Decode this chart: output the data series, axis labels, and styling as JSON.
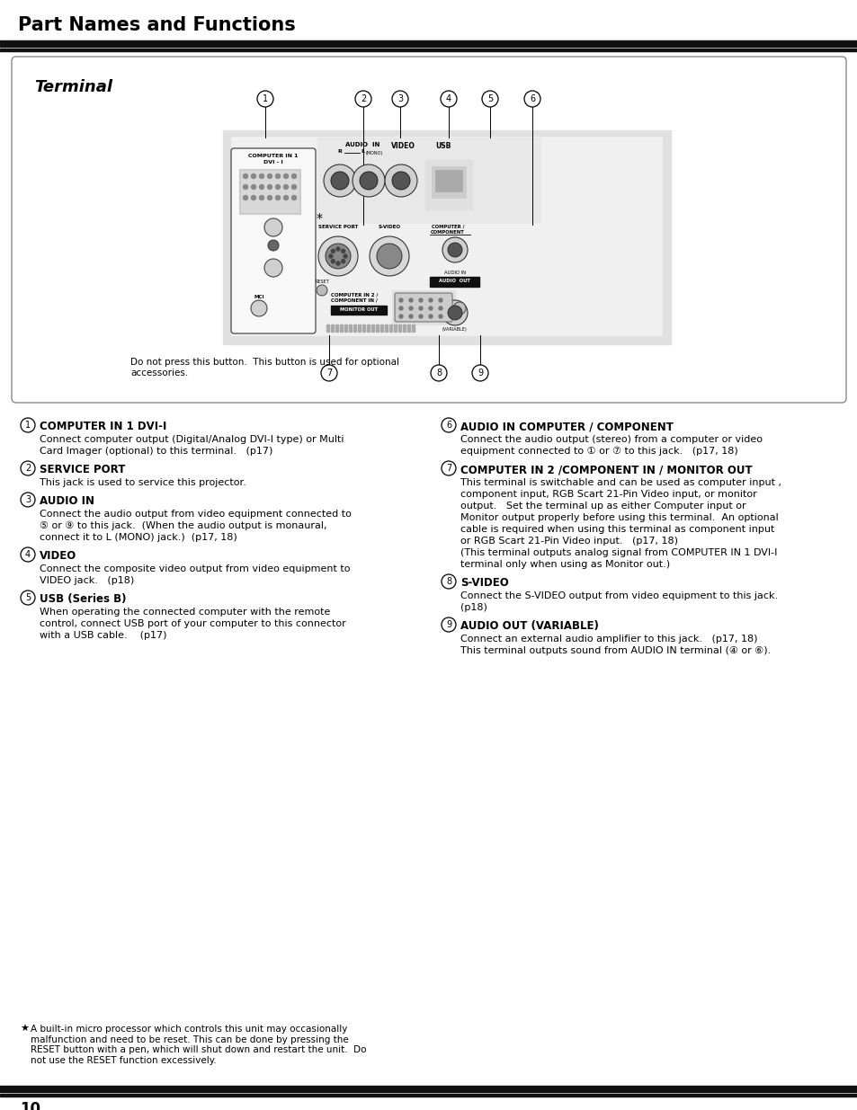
{
  "page_title": "Part Names and Functions",
  "section_title": "Terminal",
  "bg_color": "#ffffff",
  "page_number": "10",
  "footnote": "A built-in micro processor which controls this unit may occasionally\nmalfunction and need to be reset. This can be done by pressing the\nRESET button with a pen, which will shut down and restart the unit.  Do\nnot use the RESET function excessively.",
  "terminal_note": "Do not press this button.  This button is used for optional\naccessories.",
  "items_left": [
    {
      "num": "1",
      "title": "COMPUTER IN 1 DVI-I",
      "body": "Connect computer output (Digital/Analog DVI-I type) or Multi\nCard Imager (optional) to this terminal.   (p17)"
    },
    {
      "num": "2",
      "title": "SERVICE PORT",
      "body": "This jack is used to service this projector."
    },
    {
      "num": "3",
      "title": "AUDIO IN",
      "body": "Connect the audio output from video equipment connected to\n⑤ or ⑨ to this jack.  (When the audio output is monaural,\nconnect it to L (MONO) jack.)  (p17, 18)"
    },
    {
      "num": "4",
      "title": "VIDEO",
      "body": "Connect the composite video output from video equipment to\nVIDEO jack.   (p18)"
    },
    {
      "num": "5",
      "title": "USB (Series B)",
      "body": "When operating the connected computer with the remote\ncontrol, connect USB port of your computer to this connector\nwith a USB cable.    (p17)"
    }
  ],
  "items_right": [
    {
      "num": "6",
      "title": "AUDIO IN COMPUTER / COMPONENT",
      "body": "Connect the audio output (stereo) from a computer or video\nequipment connected to ① or ⑦ to this jack.   (p17, 18)"
    },
    {
      "num": "7",
      "title": "COMPUTER IN 2 /COMPONENT IN / MONITOR OUT",
      "body": "This terminal is switchable and can be used as computer input ,\ncomponent input, RGB Scart 21-Pin Video input, or monitor\noutput.   Set the terminal up as either Computer input or\nMonitor output properly before using this terminal.  An optional\ncable is required when using this terminal as component input\nor RGB Scart 21-Pin Video input.   (p17, 18)\n(This terminal outputs analog signal from COMPUTER IN 1 DVI-I\nterminal only when using as Monitor out.)"
    },
    {
      "num": "8",
      "title": "S-VIDEO",
      "body": "Connect the S-VIDEO output from video equipment to this jack.\n(p18)"
    },
    {
      "num": "9",
      "title": "AUDIO OUT (VARIABLE)",
      "body": "Connect an external audio amplifier to this jack.   (p17, 18)\nThis terminal outputs sound from AUDIO IN terminal (④ or ⑥)."
    }
  ]
}
